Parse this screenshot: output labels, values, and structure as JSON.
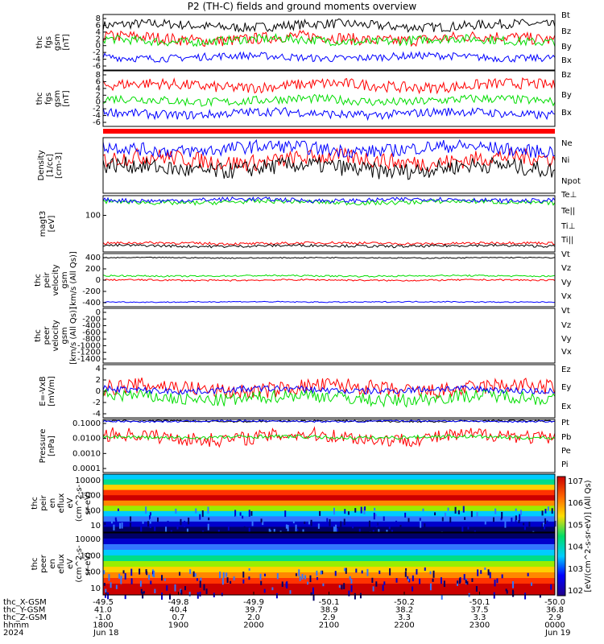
{
  "title": "P2 (TH-C) fields and ground moments overview",
  "colors": {
    "black": "#000000",
    "red": "#ff0000",
    "green": "#00dd00",
    "blue": "#0000ff"
  },
  "chart_data": [
    {
      "type": "line",
      "ylabel": [
        "thc",
        "fgs",
        "gsm",
        "[nT]"
      ],
      "yticks": [
        "8",
        "6",
        "4",
        "2",
        "0",
        "-2",
        "-4",
        "-6"
      ],
      "ylim": [
        -7,
        8
      ],
      "series": [
        {
          "name": "Bt",
          "color": "#000000",
          "level": 5,
          "noise": 1.3
        },
        {
          "name": "Bz",
          "color": "#ff0000",
          "level": 1.5,
          "noise": 1.6
        },
        {
          "name": "By",
          "color": "#00dd00",
          "level": 1.0,
          "noise": 1.2
        },
        {
          "name": "Bx",
          "color": "#0000ff",
          "level": -3.5,
          "noise": 1.0
        }
      ]
    },
    {
      "type": "line",
      "ylabel": [
        "thc",
        "fgs",
        "gsm",
        "[nT]"
      ],
      "yticks": [
        "8",
        "6",
        "4",
        "2",
        "0",
        "-2",
        "-4",
        "-6"
      ],
      "ylim": [
        -7,
        8
      ],
      "series": [
        {
          "name": "Bz",
          "color": "#ff0000",
          "level": 4,
          "noise": 1.5
        },
        {
          "name": "By",
          "color": "#00dd00",
          "level": 0,
          "noise": 1.2
        },
        {
          "name": "Bx",
          "color": "#0000ff",
          "level": -3.5,
          "noise": 1.2
        }
      ]
    },
    {
      "type": "line",
      "ylabel": [
        "Density",
        "[1/cc]",
        "[cm-3]"
      ],
      "yticks": [],
      "series": [
        {
          "name": "Ne",
          "color": "#ff0000",
          "level": 0.6,
          "noise": 0.15
        },
        {
          "name": "Ni",
          "color": "#000000",
          "level": 0.45,
          "noise": 0.15
        },
        {
          "name": "Npot",
          "color": "#0000ff",
          "level": 0.8,
          "noise": 0.12
        }
      ]
    },
    {
      "type": "line",
      "ylabel": [
        "magt3",
        "[eV]"
      ],
      "yticks": [
        "100"
      ],
      "ylim": [
        0,
        130
      ],
      "series": [
        {
          "name": "Te⊥",
          "color": "#ff0000",
          "level": 20,
          "noise": 3
        },
        {
          "name": "Te||",
          "color": "#000000",
          "level": 14,
          "noise": 3
        },
        {
          "name": "Ti⊥",
          "color": "#00dd00",
          "level": 115,
          "noise": 5
        },
        {
          "name": "Ti||",
          "color": "#0000ff",
          "level": 120,
          "noise": 5
        }
      ]
    },
    {
      "type": "line",
      "ylabel": [
        "thc",
        "peir",
        "velocity",
        "gsm",
        "[km/s (All Qs)]"
      ],
      "yticks": [
        "400",
        "200",
        "0",
        "-200",
        "-400"
      ],
      "ylim": [
        -500,
        500
      ],
      "series": [
        {
          "name": "Vt",
          "color": "#000000",
          "level": 420,
          "noise": 10
        },
        {
          "name": "Vz",
          "color": "#ff0000",
          "level": 0,
          "noise": 15
        },
        {
          "name": "Vy",
          "color": "#00dd00",
          "level": 80,
          "noise": 15
        },
        {
          "name": "Vx",
          "color": "#0000ff",
          "level": -410,
          "noise": 10
        }
      ]
    },
    {
      "type": "line",
      "ylabel": [
        "thc",
        "peer",
        "velocity",
        "gsm",
        "[km/s (All Qs)]"
      ],
      "yticks": [
        "0",
        "-200",
        "-400",
        "-600",
        "-800",
        "-1000",
        "-1200",
        "-1400"
      ],
      "ylim": [
        -1500,
        50
      ],
      "series": [
        {
          "name": "Vt",
          "color": "#000000"
        },
        {
          "name": "Vz",
          "color": "#ff0000"
        },
        {
          "name": "Vy",
          "color": "#00dd00"
        },
        {
          "name": "Vx",
          "color": "#0000ff"
        }
      ]
    },
    {
      "type": "line",
      "ylabel": [
        "E=-VxB",
        "[mV/m]"
      ],
      "yticks": [
        "4",
        "2",
        "0",
        "-2",
        "-4"
      ],
      "ylim": [
        -4,
        4
      ],
      "series": [
        {
          "name": "Ez",
          "color": "#ff0000",
          "level": 0.4,
          "noise": 1.2
        },
        {
          "name": "Ey",
          "color": "#00dd00",
          "level": -1.0,
          "noise": 1.0
        },
        {
          "name": "Ex",
          "color": "#0000ff",
          "level": 0.2,
          "noise": 0.5
        }
      ]
    },
    {
      "type": "line",
      "ylabel": [
        "Pressure",
        "[nPa]"
      ],
      "yticks": [
        "0.1000",
        "0.0100",
        "0.0010",
        "0.0001"
      ],
      "ylim": [
        -4,
        -1
      ],
      "series": [
        {
          "name": "Pt",
          "color": "#000000",
          "level": -1.1,
          "noise": 0.05
        },
        {
          "name": "Pb",
          "color": "#ff0000",
          "level": -2.0,
          "noise": 0.4
        },
        {
          "name": "Pe",
          "color": "#00dd00",
          "level": -2.0,
          "noise": 0.1
        },
        {
          "name": "Pi",
          "color": "#0000ff",
          "level": -1.1,
          "noise": 0.05
        }
      ]
    },
    {
      "type": "heatmap",
      "ylabel": [
        "thc",
        "peir",
        "en",
        "eflux",
        "eV",
        "(cm^2-s-",
        "sr-eV)"
      ],
      "yticks": [
        "10000",
        "1000",
        "100",
        "10"
      ]
    },
    {
      "type": "heatmap",
      "ylabel": [
        "thc",
        "peer",
        "en",
        "eflux",
        "eV",
        "(cm^2-s-",
        "sr-eV)"
      ],
      "yticks": [
        "10000",
        "1000",
        "100",
        "10"
      ]
    }
  ],
  "colorbar": {
    "ticks": [
      "10^7",
      "10^6",
      "10^5",
      "10^4",
      "10^3",
      "10^2"
    ],
    "label": "[eV/(cm^2-s-sr-eV)] (All Qs)"
  },
  "xaxis": {
    "rows": [
      {
        "name": "thc_X-GSM",
        "values": [
          "-49.5",
          "-49.8",
          "-49.9",
          "-50.1",
          "-50.2",
          "-50.1",
          "-50.0"
        ]
      },
      {
        "name": "thc_Y-GSM",
        "values": [
          "41.0",
          "40.4",
          "39.7",
          "38.9",
          "38.2",
          "37.5",
          "36.8"
        ]
      },
      {
        "name": "thc_Z-GSM",
        "values": [
          "-1.0",
          "0.7",
          "2.0",
          "2.9",
          "3.3",
          "3.3",
          "2.9"
        ]
      },
      {
        "name": "hhmm",
        "values": [
          "1800",
          "1900",
          "2000",
          "2100",
          "2200",
          "2300",
          "0000"
        ]
      }
    ],
    "year": "2024",
    "dates": [
      "Jun 18",
      "Jun 19"
    ]
  }
}
